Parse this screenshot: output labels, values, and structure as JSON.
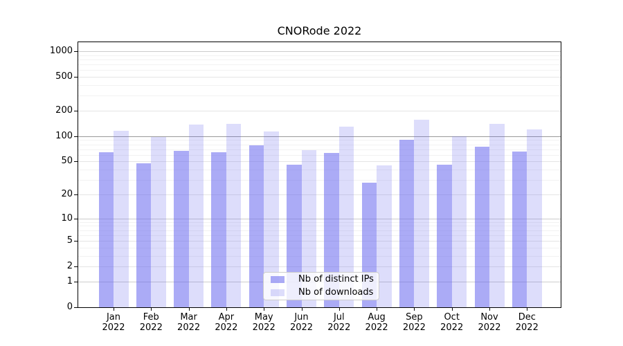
{
  "title": "CNORode 2022",
  "chart_data": {
    "type": "bar",
    "title": "CNORode 2022",
    "categories": [
      "Jan",
      "Feb",
      "Mar",
      "Apr",
      "May",
      "Jun",
      "Jul",
      "Aug",
      "Sep",
      "Oct",
      "Nov",
      "Dec"
    ],
    "x_tick_second_line": "2022",
    "series": [
      {
        "name": "Nb of distinct IPs",
        "color": "rgba(102,102,238,0.55)",
        "values": [
          64,
          48,
          67,
          65,
          78,
          46,
          63,
          28,
          90,
          46,
          75,
          66
        ]
      },
      {
        "name": "Nb of downloads",
        "color": "rgba(102,102,238,0.22)",
        "values": [
          117,
          97,
          138,
          140,
          114,
          68,
          130,
          45,
          158,
          99,
          140,
          120
        ]
      }
    ],
    "y_ticks": [
      0,
      1,
      2,
      5,
      10,
      20,
      50,
      100,
      200,
      500,
      1000
    ],
    "y_scale": "log10(1+v)",
    "y_axis_max": 1275,
    "ylim": [
      0,
      1275
    ],
    "grid": true,
    "legend_position": "lower center inside",
    "xlabel": "",
    "ylabel": ""
  },
  "colors": {
    "background": "#ffffff",
    "axis": "#000000",
    "grid_hundred": "#999999",
    "grid_decade": "#cccccc",
    "grid_labeled": "#e4e4e4",
    "grid_minor": "#f2f2f2",
    "legend_border": "#cccccc"
  }
}
